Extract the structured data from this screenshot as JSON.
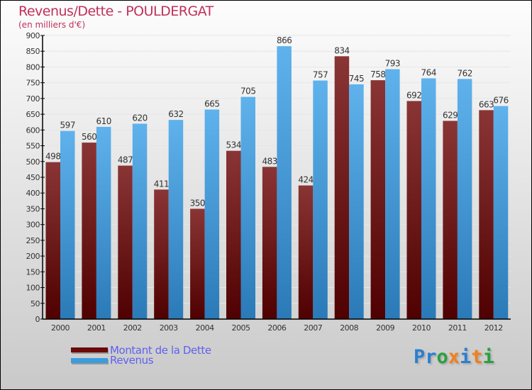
{
  "chart_data": {
    "type": "bar",
    "title": "Revenus/Dette - POULDERGAT",
    "subtitle": "(en milliers d'€)",
    "categories": [
      "2000",
      "2001",
      "2002",
      "2003",
      "2004",
      "2005",
      "2006",
      "2007",
      "2008",
      "2009",
      "2010",
      "2011",
      "2012"
    ],
    "series": [
      {
        "name": "Montant de la Dette",
        "color": "#6b0a0a",
        "values": [
          498,
          560,
          487,
          411,
          350,
          534,
          483,
          424,
          834,
          758,
          692,
          629,
          663
        ]
      },
      {
        "name": "Revenus",
        "color": "#3a9de0",
        "values": [
          597,
          610,
          620,
          632,
          665,
          705,
          866,
          757,
          745,
          793,
          764,
          762,
          676
        ]
      }
    ],
    "ylim": [
      0,
      900
    ],
    "yticks": [
      0,
      50,
      100,
      150,
      200,
      250,
      300,
      350,
      400,
      450,
      500,
      550,
      600,
      650,
      700,
      750,
      800,
      850,
      900
    ],
    "legend": "bottom-left"
  },
  "logo": "Proxiti"
}
